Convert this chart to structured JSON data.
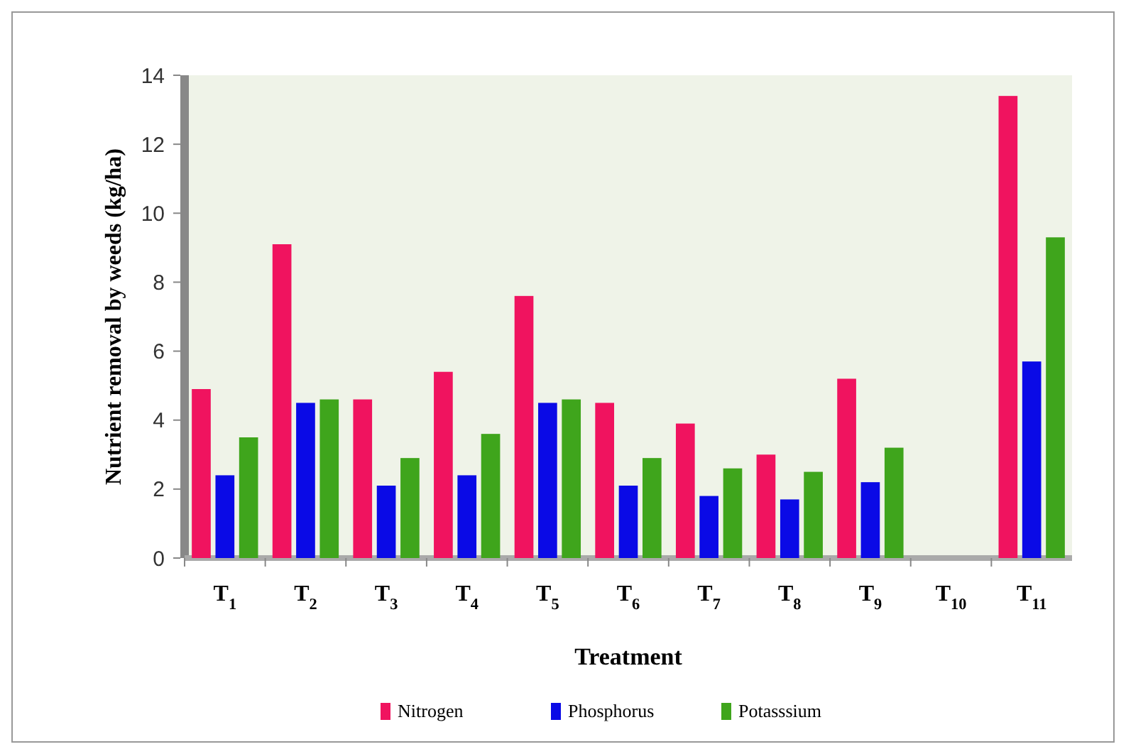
{
  "chart_data": {
    "type": "bar",
    "xlabel": "Treatment",
    "ylabel": "Nutrient removal by weeds (kg/ha)",
    "categories": [
      "T$_{1}$",
      "T$_{2}$",
      "T$_{3}$",
      "T$_{4}$",
      "T$_{5}$",
      "T$_{6}$",
      "T$_{7}$",
      "T$_{8}$",
      "T$_{9}$",
      "T$_{10}$",
      "T$_{11}$"
    ],
    "series": [
      {
        "name": "Nitrogen",
        "color": "#f0135f",
        "values": [
          4.9,
          9.1,
          4.6,
          5.4,
          7.6,
          4.5,
          3.9,
          3.0,
          5.2,
          0,
          13.4
        ]
      },
      {
        "name": "Phosphorus",
        "color": "#0a0ae6",
        "values": [
          2.4,
          4.5,
          2.1,
          2.4,
          4.5,
          2.1,
          1.8,
          1.7,
          2.2,
          0,
          5.7
        ]
      },
      {
        "name": "Potasssium",
        "color": "#3fa51c",
        "values": [
          3.5,
          4.6,
          2.9,
          3.6,
          4.6,
          2.9,
          2.6,
          2.5,
          3.2,
          0,
          9.3
        ]
      }
    ],
    "ylim": [
      0,
      14
    ],
    "yticks": [
      0,
      2,
      4,
      6,
      8,
      10,
      12,
      14
    ],
    "grid": false,
    "legend": "bottom"
  }
}
